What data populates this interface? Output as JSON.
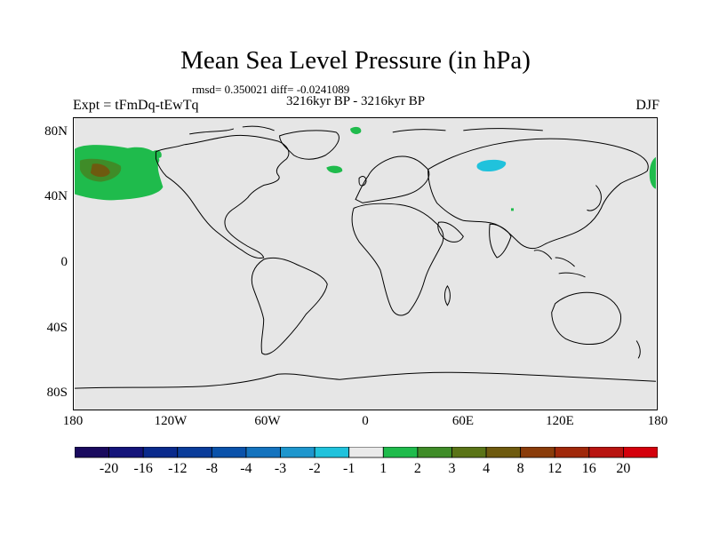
{
  "title": "Mean Sea Level Pressure (in hPa)",
  "stats": "rmsd= 0.350021 diff= -0.0241089",
  "period": "3216kyr BP - 3216kyr BP",
  "experiment": "Expt = tFmDq-tEwTq",
  "season": "DJF",
  "lat_labels": [
    "80N",
    "40N",
    "0",
    "40S",
    "80S"
  ],
  "lon_labels": [
    "180",
    "120W",
    "60W",
    "0",
    "60E",
    "120E",
    "180"
  ],
  "colorbar": {
    "tick_labels": [
      "-20",
      "-16",
      "-12",
      "-8",
      "-4",
      "-3",
      "-2",
      "-1",
      "1",
      "2",
      "3",
      "4",
      "8",
      "12",
      "16",
      "20"
    ],
    "colors": [
      "#1a0a5e",
      "#14147a",
      "#0a2a8c",
      "#0a3c9a",
      "#0a52aa",
      "#1473be",
      "#1e96cd",
      "#20c2dc",
      "#eaeaea",
      "#1fbb4c",
      "#3f8c28",
      "#5a7417",
      "#6e5a0f",
      "#8a3c0a",
      "#a0280a",
      "#b81410",
      "#d4000c"
    ]
  },
  "colors": {
    "background": "#e6e6e6",
    "land_outline": "#000000"
  }
}
